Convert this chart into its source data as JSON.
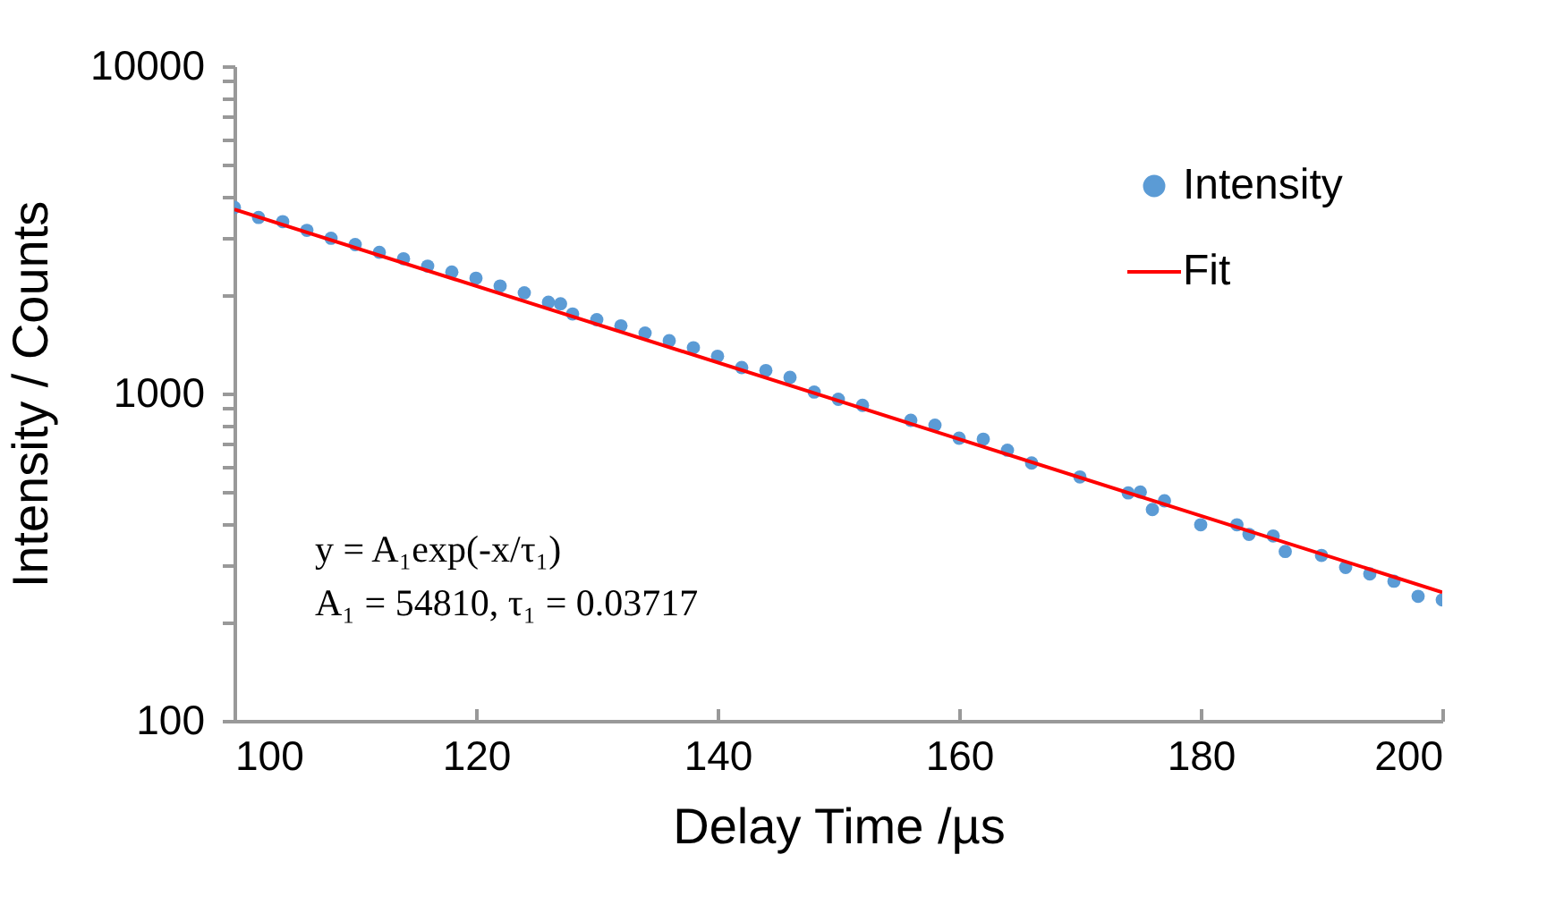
{
  "chart_data": {
    "type": "scatter",
    "xlabel": "Delay Time /µs",
    "ylabel": "Intensity / Counts",
    "log": "y",
    "legend": "top right",
    "grid": false,
    "xlim": [
      100,
      200
    ],
    "xticks": [
      100,
      120,
      140,
      160,
      180,
      200
    ],
    "ylim": [
      100,
      10000
    ],
    "yticks": [
      100,
      {
        "value": 200,
        "label": null
      },
      {
        "value": 300,
        "label": null
      },
      {
        "value": 400,
        "label": null
      },
      {
        "value": 500,
        "label": null
      },
      {
        "value": 600,
        "label": null
      },
      {
        "value": 700,
        "label": null
      },
      {
        "value": 800,
        "label": null
      },
      {
        "value": 900,
        "label": null
      },
      1000,
      {
        "value": 2000,
        "label": null
      },
      {
        "value": 3000,
        "label": null
      },
      {
        "value": 4000,
        "label": null
      },
      {
        "value": 5000,
        "label": null
      },
      {
        "value": 6000,
        "label": null
      },
      {
        "value": 7000,
        "label": null
      },
      {
        "value": 8000,
        "label": null
      },
      {
        "value": 9000,
        "label": null
      },
      10000
    ],
    "annotations": [
      "y = A₁exp(-x/τ₁)",
      "A₁ = 54810, τ₁ = 0.03717"
    ],
    "series": [
      {
        "name": "Intensity",
        "marker": "circle",
        "color": "#5b9bd5",
        "x": [
          100,
          102,
          104,
          106,
          108,
          110,
          112,
          114,
          116,
          118,
          120,
          122,
          124,
          126,
          127,
          128,
          130,
          132,
          134,
          136,
          138,
          140,
          142,
          144,
          146,
          148,
          150,
          152,
          156,
          158,
          160,
          162,
          164,
          166,
          170,
          174,
          175,
          176,
          177,
          180,
          183,
          184,
          186,
          187,
          190,
          192,
          194,
          196,
          198,
          200
        ],
        "values": [
          3700,
          3450,
          3350,
          3150,
          2980,
          2850,
          2700,
          2580,
          2450,
          2350,
          2250,
          2130,
          2030,
          1900,
          1880,
          1750,
          1680,
          1610,
          1530,
          1450,
          1380,
          1300,
          1200,
          1175,
          1120,
          1010,
          960,
          920,
          828,
          800,
          730,
          725,
          671,
          613,
          556,
          497,
          500,
          442,
          470,
          397,
          397,
          371,
          367,
          329,
          320,
          294,
          281,
          267,
          240,
          234
        ]
      },
      {
        "name": "Fit",
        "type": "line",
        "marker": "none",
        "color": "#ff0000",
        "x": [
          100,
          125,
          150,
          175,
          200
        ],
        "values": [
          3650,
          1862,
          950,
          484,
          247
        ]
      }
    ]
  }
}
